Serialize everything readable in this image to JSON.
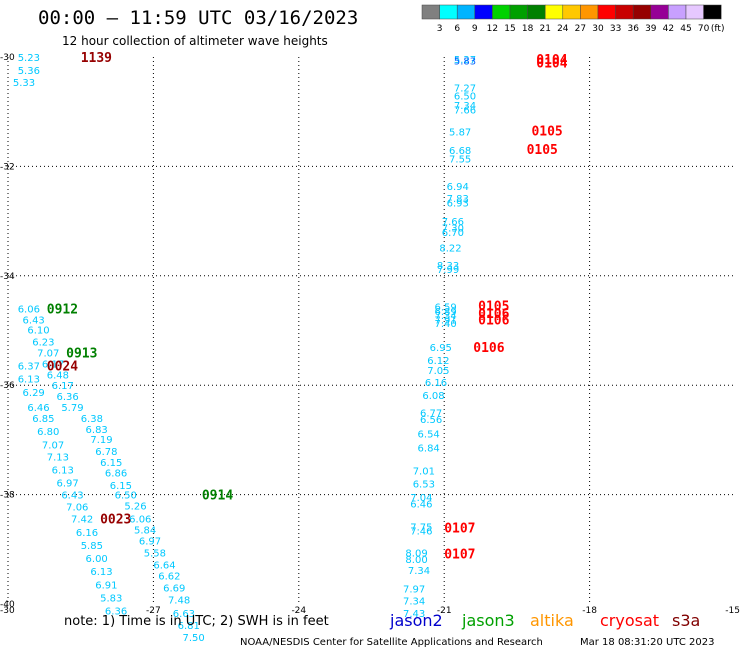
{
  "header": {
    "title": "00:00 – 11:59 UTC 03/16/2023",
    "subtitle": "12 hour collection of altimeter wave heights"
  },
  "legend": {
    "labels": [
      "3",
      "6",
      "9",
      "12",
      "15",
      "18",
      "21",
      "24",
      "27",
      "30",
      "33",
      "36",
      "39",
      "42",
      "45",
      "70",
      "(ft)"
    ],
    "colors": [
      "#808080",
      "#00ffff",
      "#00b4ff",
      "#0000ff",
      "#00d200",
      "#00a000",
      "#008000",
      "#ffff00",
      "#ffc800",
      "#ff9600",
      "#ff0000",
      "#c80000",
      "#960000",
      "#960096",
      "#c8a0ff",
      "#e6c8ff",
      "#000000"
    ]
  },
  "footer": {
    "note": "note:  1) Time is in UTC;  2) SWH is in feet",
    "credit": "NOAA/NESDIS Center for Satellite Applications and Research",
    "timestamp": "Mar 18 08:31:20 UTC 2023",
    "missions": [
      {
        "name": "jason2",
        "color": "#0000cc"
      },
      {
        "name": "jason3",
        "color": "#00a000"
      },
      {
        "name": "altika",
        "color": "#ff9600"
      },
      {
        "name": "cryosat",
        "color": "#ff0000"
      },
      {
        "name": "s3a",
        "color": "#800000"
      }
    ]
  },
  "chart_data": {
    "type": "scatter",
    "title": "00:00 – 11:59 UTC 03/16/2023",
    "subtitle": "12 hour collection of altimeter wave heights",
    "xlabel": "",
    "ylabel": "",
    "xlim": [
      -30,
      -15
    ],
    "ylim": [
      -40,
      -30
    ],
    "x_ticks": [
      -30,
      -27,
      -24,
      -21,
      -18,
      -15
    ],
    "y_ticks": [
      -30,
      -32,
      -34,
      -36,
      -38,
      -40
    ],
    "grid": true,
    "points": [
      {
        "x": -29.8,
        "y": -30.0,
        "v": "5.23",
        "c": "#00c8ff"
      },
      {
        "x": -29.8,
        "y": -30.24,
        "v": "5.36",
        "c": "#00c8ff"
      },
      {
        "x": -29.9,
        "y": -30.46,
        "v": "5.33",
        "c": "#00c8ff"
      },
      {
        "x": -20.8,
        "y": -30.04,
        "v": "5.27",
        "c": "#00c8ff"
      },
      {
        "x": -20.8,
        "y": -30.06,
        "v": "5.83",
        "c": "#0060ff"
      },
      {
        "x": -20.8,
        "y": -30.56,
        "v": "7.27",
        "c": "#00c8ff"
      },
      {
        "x": -20.8,
        "y": -30.7,
        "v": "6.50",
        "c": "#00c8ff"
      },
      {
        "x": -20.8,
        "y": -30.88,
        "v": "7.34",
        "c": "#00c8ff"
      },
      {
        "x": -20.8,
        "y": -30.96,
        "v": "7.66",
        "c": "#00c8ff"
      },
      {
        "x": -20.9,
        "y": -31.36,
        "v": "5.87",
        "c": "#00c8ff"
      },
      {
        "x": -20.9,
        "y": -31.7,
        "v": "6.68",
        "c": "#00c8ff"
      },
      {
        "x": -20.9,
        "y": -31.86,
        "v": "7.55",
        "c": "#00c8ff"
      },
      {
        "x": -20.95,
        "y": -32.36,
        "v": "6.94",
        "c": "#00c8ff"
      },
      {
        "x": -20.95,
        "y": -32.58,
        "v": "7.83",
        "c": "#00c8ff"
      },
      {
        "x": -20.95,
        "y": -32.66,
        "v": "6.93",
        "c": "#00c8ff"
      },
      {
        "x": -21.05,
        "y": -33.0,
        "v": "7.66",
        "c": "#00c8ff"
      },
      {
        "x": -21.05,
        "y": -33.12,
        "v": "7.30",
        "c": "#00c8ff"
      },
      {
        "x": -21.05,
        "y": -33.2,
        "v": "6.70",
        "c": "#00c8ff"
      },
      {
        "x": -21.1,
        "y": -33.48,
        "v": "8.22",
        "c": "#00c8ff"
      },
      {
        "x": -21.15,
        "y": -33.8,
        "v": "8.33",
        "c": "#00c8ff"
      },
      {
        "x": -21.15,
        "y": -33.88,
        "v": "7.99",
        "c": "#00c8ff"
      },
      {
        "x": -29.8,
        "y": -34.6,
        "v": "6.06",
        "c": "#00c8ff"
      },
      {
        "x": -29.7,
        "y": -34.8,
        "v": "6.43",
        "c": "#00c8ff"
      },
      {
        "x": -29.6,
        "y": -34.98,
        "v": "6.10",
        "c": "#00c8ff"
      },
      {
        "x": -29.5,
        "y": -35.2,
        "v": "6.23",
        "c": "#00c8ff"
      },
      {
        "x": -29.4,
        "y": -35.4,
        "v": "7.07",
        "c": "#00c8ff"
      },
      {
        "x": -29.8,
        "y": -35.64,
        "v": "6.37",
        "c": "#00c8ff"
      },
      {
        "x": -29.3,
        "y": -35.6,
        "v": "6.17",
        "c": "#00c8ff"
      },
      {
        "x": -29.2,
        "y": -35.8,
        "v": "6.48",
        "c": "#00c8ff"
      },
      {
        "x": -29.8,
        "y": -35.88,
        "v": "6.13",
        "c": "#00c8ff"
      },
      {
        "x": -29.1,
        "y": -36.0,
        "v": "6.17",
        "c": "#00c8ff"
      },
      {
        "x": -29.7,
        "y": -36.12,
        "v": "6.29",
        "c": "#00c8ff"
      },
      {
        "x": -29.0,
        "y": -36.2,
        "v": "6.36",
        "c": "#00c8ff"
      },
      {
        "x": -29.6,
        "y": -36.4,
        "v": "6.46",
        "c": "#00c8ff"
      },
      {
        "x": -28.9,
        "y": -36.4,
        "v": "5.79",
        "c": "#00c8ff"
      },
      {
        "x": -29.5,
        "y": -36.6,
        "v": "6.85",
        "c": "#00c8ff"
      },
      {
        "x": -28.5,
        "y": -36.6,
        "v": "6.38",
        "c": "#00c8ff"
      },
      {
        "x": -29.4,
        "y": -36.84,
        "v": "6.80",
        "c": "#00c8ff"
      },
      {
        "x": -28.4,
        "y": -36.8,
        "v": "6.83",
        "c": "#00c8ff"
      },
      {
        "x": -29.3,
        "y": -37.08,
        "v": "7.07",
        "c": "#00c8ff"
      },
      {
        "x": -28.3,
        "y": -36.98,
        "v": "7.19",
        "c": "#00c8ff"
      },
      {
        "x": -29.2,
        "y": -37.3,
        "v": "7.13",
        "c": "#00c8ff"
      },
      {
        "x": -28.2,
        "y": -37.2,
        "v": "6.78",
        "c": "#00c8ff"
      },
      {
        "x": -29.1,
        "y": -37.54,
        "v": "6.13",
        "c": "#00c8ff"
      },
      {
        "x": -28.1,
        "y": -37.4,
        "v": "6.15",
        "c": "#00c8ff"
      },
      {
        "x": -29.0,
        "y": -37.78,
        "v": "6.97",
        "c": "#00c8ff"
      },
      {
        "x": -28.0,
        "y": -37.6,
        "v": "6.86",
        "c": "#00c8ff"
      },
      {
        "x": -28.9,
        "y": -38.0,
        "v": "6.43",
        "c": "#00c8ff"
      },
      {
        "x": -27.9,
        "y": -37.82,
        "v": "6.15",
        "c": "#00c8ff"
      },
      {
        "x": -28.8,
        "y": -38.22,
        "v": "7.06",
        "c": "#00c8ff"
      },
      {
        "x": -27.8,
        "y": -38.0,
        "v": "6.50",
        "c": "#00c8ff"
      },
      {
        "x": -28.7,
        "y": -38.44,
        "v": "7.42",
        "c": "#00c8ff"
      },
      {
        "x": -27.6,
        "y": -38.2,
        "v": "5.26",
        "c": "#00c8ff"
      },
      {
        "x": -28.6,
        "y": -38.68,
        "v": "6.16",
        "c": "#00c8ff"
      },
      {
        "x": -27.5,
        "y": -38.44,
        "v": "6.06",
        "c": "#00c8ff"
      },
      {
        "x": -28.5,
        "y": -38.92,
        "v": "5.85",
        "c": "#00c8ff"
      },
      {
        "x": -27.4,
        "y": -38.64,
        "v": "5.84",
        "c": "#00c8ff"
      },
      {
        "x": -28.4,
        "y": -39.16,
        "v": "6.00",
        "c": "#00c8ff"
      },
      {
        "x": -27.3,
        "y": -38.84,
        "v": "6.97",
        "c": "#00c8ff"
      },
      {
        "x": -28.3,
        "y": -39.4,
        "v": "6.13",
        "c": "#00c8ff"
      },
      {
        "x": -27.2,
        "y": -39.06,
        "v": "5.58",
        "c": "#00c8ff"
      },
      {
        "x": -28.2,
        "y": -39.64,
        "v": "6.91",
        "c": "#00c8ff"
      },
      {
        "x": -27.0,
        "y": -39.28,
        "v": "6.64",
        "c": "#00c8ff"
      },
      {
        "x": -28.1,
        "y": -39.88,
        "v": "5.83",
        "c": "#00c8ff"
      },
      {
        "x": -26.9,
        "y": -39.48,
        "v": "6.62",
        "c": "#00c8ff"
      },
      {
        "x": -28.0,
        "y": -40.12,
        "v": "6.36",
        "c": "#00c8ff"
      },
      {
        "x": -26.8,
        "y": -39.7,
        "v": "6.69",
        "c": "#00c8ff"
      },
      {
        "x": -26.7,
        "y": -39.92,
        "v": "7.48",
        "c": "#00c8ff"
      },
      {
        "x": -26.6,
        "y": -40.16,
        "v": "6.63",
        "c": "#00c8ff"
      },
      {
        "x": -26.5,
        "y": -40.38,
        "v": "6.81",
        "c": "#00c8ff"
      },
      {
        "x": -26.4,
        "y": -40.6,
        "v": "7.50",
        "c": "#00c8ff"
      },
      {
        "x": -21.2,
        "y": -34.56,
        "v": "6.59",
        "c": "#00c8ff"
      },
      {
        "x": -21.2,
        "y": -34.64,
        "v": "6.89",
        "c": "#00c8ff"
      },
      {
        "x": -21.2,
        "y": -34.72,
        "v": "7.34",
        "c": "#00c8ff"
      },
      {
        "x": -21.2,
        "y": -34.8,
        "v": "7.91",
        "c": "#00c8ff"
      },
      {
        "x": -21.2,
        "y": -34.86,
        "v": "7.40",
        "c": "#00c8ff"
      },
      {
        "x": -21.3,
        "y": -35.3,
        "v": "6.95",
        "c": "#00c8ff"
      },
      {
        "x": -21.35,
        "y": -35.54,
        "v": "6.12",
        "c": "#00c8ff"
      },
      {
        "x": -21.35,
        "y": -35.72,
        "v": "7.05",
        "c": "#00c8ff"
      },
      {
        "x": -21.4,
        "y": -35.94,
        "v": "6.16",
        "c": "#00c8ff"
      },
      {
        "x": -21.45,
        "y": -36.18,
        "v": "6.08",
        "c": "#00c8ff"
      },
      {
        "x": -21.5,
        "y": -36.5,
        "v": "6.77",
        "c": "#00c8ff"
      },
      {
        "x": -21.5,
        "y": -36.62,
        "v": "6.56",
        "c": "#00c8ff"
      },
      {
        "x": -21.55,
        "y": -36.88,
        "v": "6.54",
        "c": "#00c8ff"
      },
      {
        "x": -21.55,
        "y": -37.14,
        "v": "6.84",
        "c": "#00c8ff"
      },
      {
        "x": -21.65,
        "y": -37.56,
        "v": "7.01",
        "c": "#00c8ff"
      },
      {
        "x": -21.65,
        "y": -37.8,
        "v": "6.53",
        "c": "#00c8ff"
      },
      {
        "x": -21.7,
        "y": -38.04,
        "v": "7.04",
        "c": "#00c8ff"
      },
      {
        "x": -21.7,
        "y": -38.16,
        "v": "6.46",
        "c": "#00c8ff"
      },
      {
        "x": -21.7,
        "y": -38.58,
        "v": "7.75",
        "c": "#00c8ff"
      },
      {
        "x": -21.7,
        "y": -38.66,
        "v": "7.46",
        "c": "#00c8ff"
      },
      {
        "x": -21.8,
        "y": -39.06,
        "v": "8.09",
        "c": "#00c8ff"
      },
      {
        "x": -21.8,
        "y": -39.18,
        "v": "8.00",
        "c": "#00c8ff"
      },
      {
        "x": -21.75,
        "y": -39.38,
        "v": "7.34",
        "c": "#00c8ff"
      },
      {
        "x": -21.85,
        "y": -39.72,
        "v": "7.97",
        "c": "#00c8ff"
      },
      {
        "x": -21.85,
        "y": -39.94,
        "v": "7.34",
        "c": "#00c8ff"
      },
      {
        "x": -21.85,
        "y": -40.16,
        "v": "7.43",
        "c": "#00c8ff"
      }
    ],
    "time_labels": [
      {
        "x": -28.5,
        "y": -30.0,
        "t": "1139",
        "c": "#960000"
      },
      {
        "x": -19.1,
        "y": -30.04,
        "t": "0104",
        "c": "#ff0000"
      },
      {
        "x": -19.1,
        "y": -30.1,
        "t": "0104",
        "c": "#ff0000"
      },
      {
        "x": -19.2,
        "y": -31.34,
        "t": "0105",
        "c": "#ff0000"
      },
      {
        "x": -19.3,
        "y": -31.68,
        "t": "0105",
        "c": "#ff0000"
      },
      {
        "x": -29.2,
        "y": -34.6,
        "t": "0912",
        "c": "#008000"
      },
      {
        "x": -28.8,
        "y": -35.4,
        "t": "0913",
        "c": "#008000"
      },
      {
        "x": -29.2,
        "y": -35.64,
        "t": "0024",
        "c": "#960000"
      },
      {
        "x": -20.3,
        "y": -34.54,
        "t": "0105",
        "c": "#ff0000"
      },
      {
        "x": -20.3,
        "y": -34.68,
        "t": "0106",
        "c": "#ff0000"
      },
      {
        "x": -20.3,
        "y": -34.8,
        "t": "0106",
        "c": "#ff0000"
      },
      {
        "x": -20.4,
        "y": -35.3,
        "t": "0106",
        "c": "#ff0000"
      },
      {
        "x": -26.0,
        "y": -38.0,
        "t": "0914",
        "c": "#008000"
      },
      {
        "x": -28.1,
        "y": -38.44,
        "t": "0023",
        "c": "#960000"
      },
      {
        "x": -21.0,
        "y": -38.6,
        "t": "0107",
        "c": "#ff0000"
      },
      {
        "x": -21.0,
        "y": -39.08,
        "t": "0107",
        "c": "#ff0000"
      }
    ]
  }
}
